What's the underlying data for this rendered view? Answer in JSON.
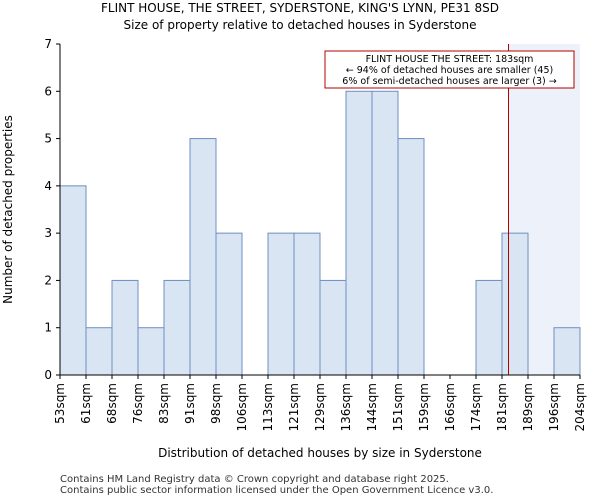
{
  "chart_data": {
    "type": "histogram",
    "title": "FLINT HOUSE, THE STREET, SYDERSTONE, KING'S LYNN, PE31 8SD",
    "subtitle": "Size of property relative to detached houses in Syderstone",
    "xlabel": "Distribution of detached houses by size in Syderstone",
    "ylabel": "Number of detached properties",
    "bin_edges": [
      53,
      61,
      68,
      76,
      83,
      91,
      98,
      106,
      113,
      121,
      129,
      136,
      144,
      151,
      159,
      166,
      174,
      181,
      189,
      196,
      204
    ],
    "tick_labels": [
      "53sqm",
      "61sqm",
      "68sqm",
      "76sqm",
      "83sqm",
      "91sqm",
      "98sqm",
      "106sqm",
      "113sqm",
      "121sqm",
      "129sqm",
      "136sqm",
      "144sqm",
      "151sqm",
      "159sqm",
      "166sqm",
      "174sqm",
      "181sqm",
      "189sqm",
      "196sqm",
      "204sqm"
    ],
    "values": [
      4,
      1,
      2,
      1,
      2,
      5,
      3,
      0,
      3,
      3,
      2,
      6,
      6,
      5,
      0,
      0,
      2,
      3,
      0,
      1
    ],
    "ylim": [
      0,
      7
    ],
    "yticks": [
      "0",
      "1",
      "2",
      "3",
      "4",
      "5",
      "6",
      "7"
    ],
    "marker_value": 183,
    "annotation": {
      "line1": "FLINT HOUSE THE STREET: 183sqm",
      "line2": "← 94% of detached houses are smaller (45)",
      "line3": "6% of semi-detached houses are larger (3) →"
    },
    "colors": {
      "bar_fill": "#dae5f3",
      "bar_edge": "#6d8fc1",
      "marker": "#b30000",
      "highlight_region": "#edf2fa"
    }
  },
  "footer": {
    "line1": "Contains HM Land Registry data © Crown copyright and database right 2025.",
    "line2": "Contains public sector information licensed under the Open Government Licence v3.0."
  }
}
